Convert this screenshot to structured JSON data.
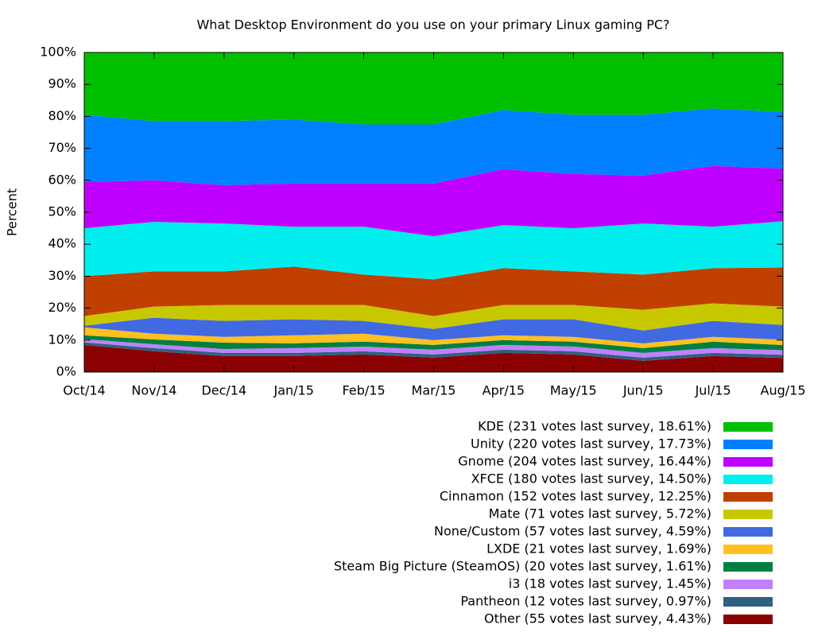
{
  "chart_data": {
    "type": "stacked-area",
    "title": "What Desktop Environment do you use on your primary Linux gaming PC?",
    "y_label": "Percent",
    "categories": [
      "Oct/14",
      "Nov/14",
      "Dec/14",
      "Jan/15",
      "Feb/15",
      "Mar/15",
      "Apr/15",
      "May/15",
      "Jun/15",
      "Jul/15",
      "Aug/15"
    ],
    "ylim": [
      0,
      100
    ],
    "yticks": [
      {
        "value": 0,
        "label": "0%"
      },
      {
        "value": 10,
        "label": "10%"
      },
      {
        "value": 20,
        "label": "20%"
      },
      {
        "value": 30,
        "label": "30%"
      },
      {
        "value": 40,
        "label": "40%"
      },
      {
        "value": 50,
        "label": "50%"
      },
      {
        "value": 60,
        "label": "60%"
      },
      {
        "value": 70,
        "label": "70%"
      },
      {
        "value": 80,
        "label": "80%"
      },
      {
        "value": 90,
        "label": "90%"
      },
      {
        "value": 100,
        "label": "100%"
      }
    ],
    "series": [
      {
        "name": "KDE (231 votes last survey, 18.61%)",
        "color": "#00c000",
        "values": [
          19.5,
          21.5,
          21.5,
          21,
          22.5,
          22.5,
          18,
          19.5,
          19.5,
          17.5,
          18.61
        ]
      },
      {
        "name": "Unity (220 votes last survey, 17.73%)",
        "color": "#0080ff",
        "values": [
          21,
          18.5,
          20,
          20,
          18.5,
          18.5,
          18.5,
          18.5,
          19,
          18,
          17.73
        ]
      },
      {
        "name": "Gnome (204 votes last survey, 16.44%)",
        "color": "#c000ff",
        "values": [
          14.5,
          13,
          12,
          13.5,
          13.5,
          16.5,
          17.5,
          17,
          15,
          19,
          16.44
        ]
      },
      {
        "name": "XFCE (180 votes last survey, 14.50%)",
        "color": "#00eeee",
        "values": [
          15,
          15.5,
          15,
          12.5,
          15,
          13.5,
          13.5,
          13.5,
          16,
          13,
          14.5
        ]
      },
      {
        "name": "Cinnamon (152 votes last survey, 12.25%)",
        "color": "#c04000",
        "values": [
          12.5,
          11,
          10.5,
          12,
          9.5,
          11.5,
          11.5,
          10.5,
          11,
          11,
          12.25
        ]
      },
      {
        "name": "Mate (71 votes last survey, 5.72%)",
        "color": "#c8c800",
        "values": [
          3,
          3.5,
          5,
          4.5,
          5,
          4,
          4.5,
          4.5,
          6.5,
          5.5,
          5.72
        ]
      },
      {
        "name": "None/Custom (57 votes last survey, 4.59%)",
        "color": "#4169e1",
        "values": [
          0.5,
          5,
          5,
          5,
          4,
          3.5,
          5,
          5.5,
          4,
          5,
          4.59
        ]
      },
      {
        "name": "LXDE (21 votes last survey, 1.69%)",
        "color": "#ffc020",
        "values": [
          2.5,
          1.8,
          1.8,
          2.5,
          2.5,
          1.5,
          1.5,
          1.5,
          1.5,
          1.5,
          1.69
        ]
      },
      {
        "name": "Steam Big Picture (SteamOS) (20 votes last survey, 1.61%)",
        "color": "#008040",
        "values": [
          1.2,
          1.5,
          2,
          1.5,
          1.5,
          1.5,
          1.5,
          1.5,
          1.5,
          2,
          1.61
        ]
      },
      {
        "name": "i3 (18 votes last survey, 1.45%)",
        "color": "#c080ff",
        "values": [
          1,
          1.2,
          1.2,
          1.5,
          1.5,
          1.5,
          1.5,
          1.5,
          1.5,
          1.5,
          1.45
        ]
      },
      {
        "name": "Pantheon (12 votes last survey, 0.97%)",
        "color": "#306080",
        "values": [
          0.8,
          1,
          1,
          1,
          1,
          1,
          1,
          1,
          1,
          1,
          0.97
        ]
      },
      {
        "name": "Other (55 votes last survey, 4.43%)",
        "color": "#8b0000",
        "values": [
          8.5,
          6.5,
          5,
          5,
          5.5,
          4.5,
          6,
          5.5,
          3.5,
          5,
          4.43
        ]
      }
    ]
  }
}
